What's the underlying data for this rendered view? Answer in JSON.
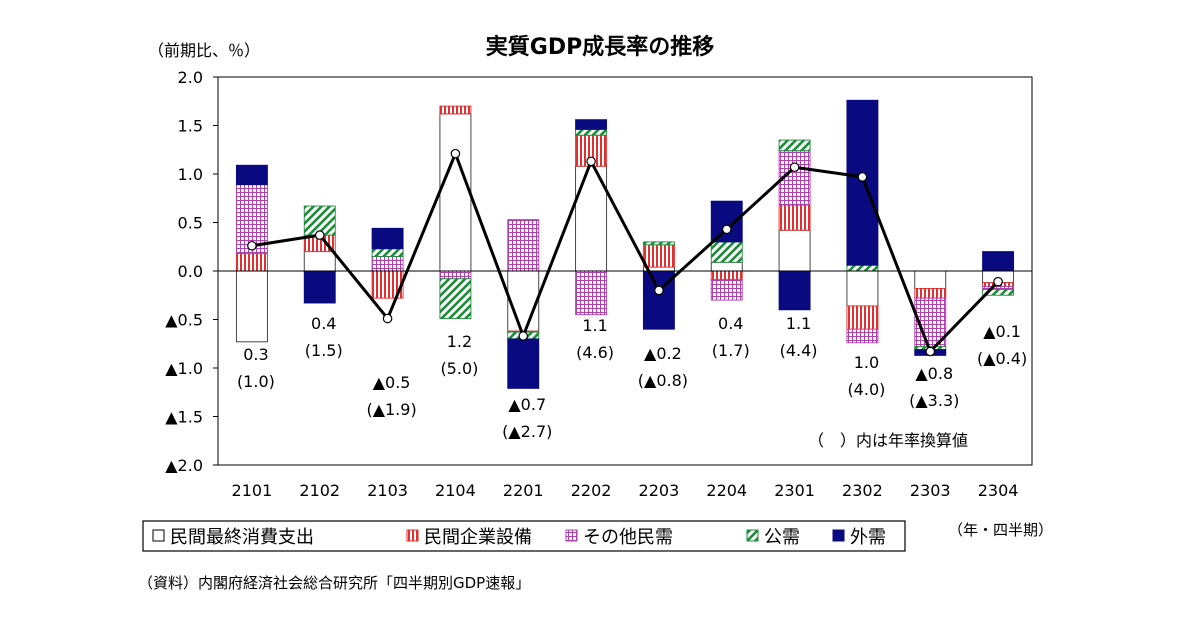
{
  "chart_data": {
    "type": "bar",
    "title": "実質GDP成長率の推移",
    "unit_label": "（前期比、％）",
    "x_unit_label": "（年・四半期）",
    "note": "（　）内は年率換算値",
    "source": "（資料）内閣府経済社会総合研究所「四半期別GDP速報」",
    "ylim": [
      -2.0,
      2.0
    ],
    "y_ticks": [
      "2.0",
      "1.5",
      "1.0",
      "0.5",
      "0.0",
      "▲0.5",
      "▲1.0",
      "▲1.5",
      "▲2.0"
    ],
    "categories": [
      "2101",
      "2102",
      "2103",
      "2104",
      "2201",
      "2202",
      "2203",
      "2204",
      "2301",
      "2302",
      "2303",
      "2304"
    ],
    "series": [
      {
        "name": "民間最終消費支出",
        "color": "#ffffff",
        "pattern": "white",
        "values": [
          -0.73,
          0.2,
          0.0,
          1.62,
          -0.62,
          1.08,
          0.04,
          0.09,
          0.42,
          -0.36,
          -0.18,
          -0.12
        ]
      },
      {
        "name": "民間企業設備",
        "color": "#e03030",
        "pattern": "vlines",
        "values": [
          0.18,
          0.17,
          -0.28,
          0.08,
          -0.01,
          0.32,
          0.23,
          -0.09,
          0.26,
          -0.24,
          -0.1,
          -0.04
        ]
      },
      {
        "name": "その他民需",
        "color": "#b040b0",
        "pattern": "grid",
        "values": [
          0.71,
          -0.01,
          0.15,
          -0.08,
          0.53,
          -0.45,
          0.0,
          -0.21,
          0.56,
          -0.14,
          -0.5,
          -0.03
        ]
      },
      {
        "name": "公需",
        "color": "#1e8c3a",
        "pattern": "diag",
        "values": [
          0.0,
          0.3,
          0.08,
          -0.41,
          -0.07,
          0.06,
          0.03,
          0.21,
          0.11,
          0.06,
          -0.03,
          -0.06
        ]
      },
      {
        "name": "外需",
        "color": "#0a0a80",
        "pattern": "solid",
        "values": [
          0.2,
          -0.32,
          0.21,
          0.0,
          -0.51,
          0.1,
          -0.6,
          0.42,
          -0.4,
          1.7,
          -0.06,
          0.2
        ]
      }
    ],
    "line": {
      "name": "実質GDP成長率",
      "values": [
        0.26,
        0.37,
        -0.49,
        1.21,
        -0.67,
        1.13,
        -0.2,
        0.43,
        1.07,
        0.97,
        -0.83,
        -0.11
      ]
    },
    "data_labels": [
      {
        "q": "0.3",
        "a": "(1.0)"
      },
      {
        "q": "0.4",
        "a": "(1.5)"
      },
      {
        "q": "▲0.5",
        "a": "(▲1.9)"
      },
      {
        "q": "1.2",
        "a": "(5.0)"
      },
      {
        "q": "▲0.7",
        "a": "(▲2.7)"
      },
      {
        "q": "1.1",
        "a": "(4.6)"
      },
      {
        "q": "▲0.2",
        "a": "(▲0.8)"
      },
      {
        "q": "0.4",
        "a": "(1.7)"
      },
      {
        "q": "1.1",
        "a": "(4.4)"
      },
      {
        "q": "1.0",
        "a": "(4.0)"
      },
      {
        "q": "▲0.8",
        "a": "(▲3.3)"
      },
      {
        "q": "▲0.1",
        "a": "(▲0.4)"
      }
    ],
    "grid": false,
    "legend_position": "bottom"
  }
}
